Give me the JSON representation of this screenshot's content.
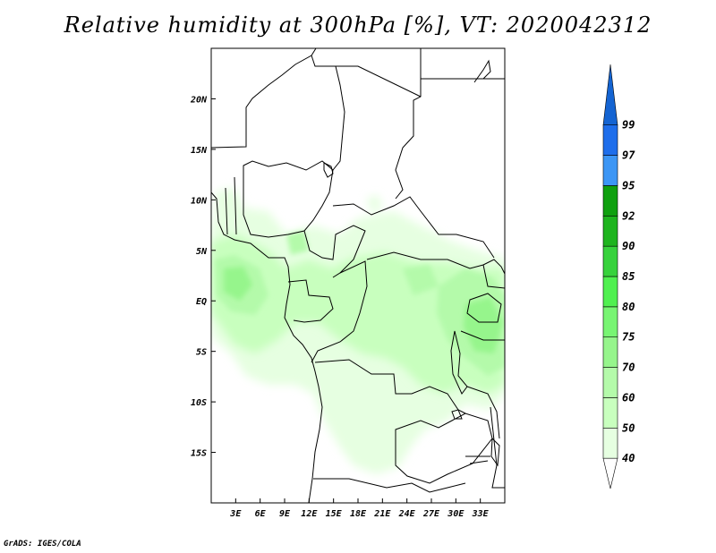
{
  "title": "Relative humidity at 300hPa [%], VT: 2020042312",
  "credit": "GrADS: IGES/COLA",
  "map": {
    "lon_range": [
      0,
      36
    ],
    "lat_range": [
      -20,
      25
    ],
    "lon_ticks": [
      {
        "value": 3,
        "label": "3E"
      },
      {
        "value": 6,
        "label": "6E"
      },
      {
        "value": 9,
        "label": "9E"
      },
      {
        "value": 12,
        "label": "12E"
      },
      {
        "value": 15,
        "label": "15E"
      },
      {
        "value": 18,
        "label": "18E"
      },
      {
        "value": 21,
        "label": "21E"
      },
      {
        "value": 24,
        "label": "24E"
      },
      {
        "value": 27,
        "label": "27E"
      },
      {
        "value": 30,
        "label": "30E"
      },
      {
        "value": 33,
        "label": "33E"
      }
    ],
    "lat_ticks": [
      {
        "value": 20,
        "label": "20N"
      },
      {
        "value": 15,
        "label": "15N"
      },
      {
        "value": 10,
        "label": "10N"
      },
      {
        "value": 5,
        "label": "5N"
      },
      {
        "value": 0,
        "label": "EQ"
      },
      {
        "value": -5,
        "label": "5S"
      },
      {
        "value": -10,
        "label": "10S"
      },
      {
        "value": -15,
        "label": "15S"
      }
    ]
  },
  "colorbar": {
    "levels": [
      "40",
      "50",
      "60",
      "70",
      "75",
      "80",
      "85",
      "90",
      "92",
      "95",
      "97",
      "99"
    ],
    "colors": [
      "#ffffff",
      "#e6ffe1",
      "#c8ffbe",
      "#b4faaa",
      "#96f58c",
      "#78f573",
      "#50f050",
      "#37d23c",
      "#1eb41e",
      "#0fa00f",
      "#3c96f5",
      "#1e6eeb",
      "#1464d2"
    ]
  },
  "colors": {
    "land_outline": "#000000",
    "humid_light": "#e6ffe1",
    "humid_mid": "#c8ffbe",
    "humid_strong": "#b4faaa",
    "humid_peak": "#96f58c"
  }
}
